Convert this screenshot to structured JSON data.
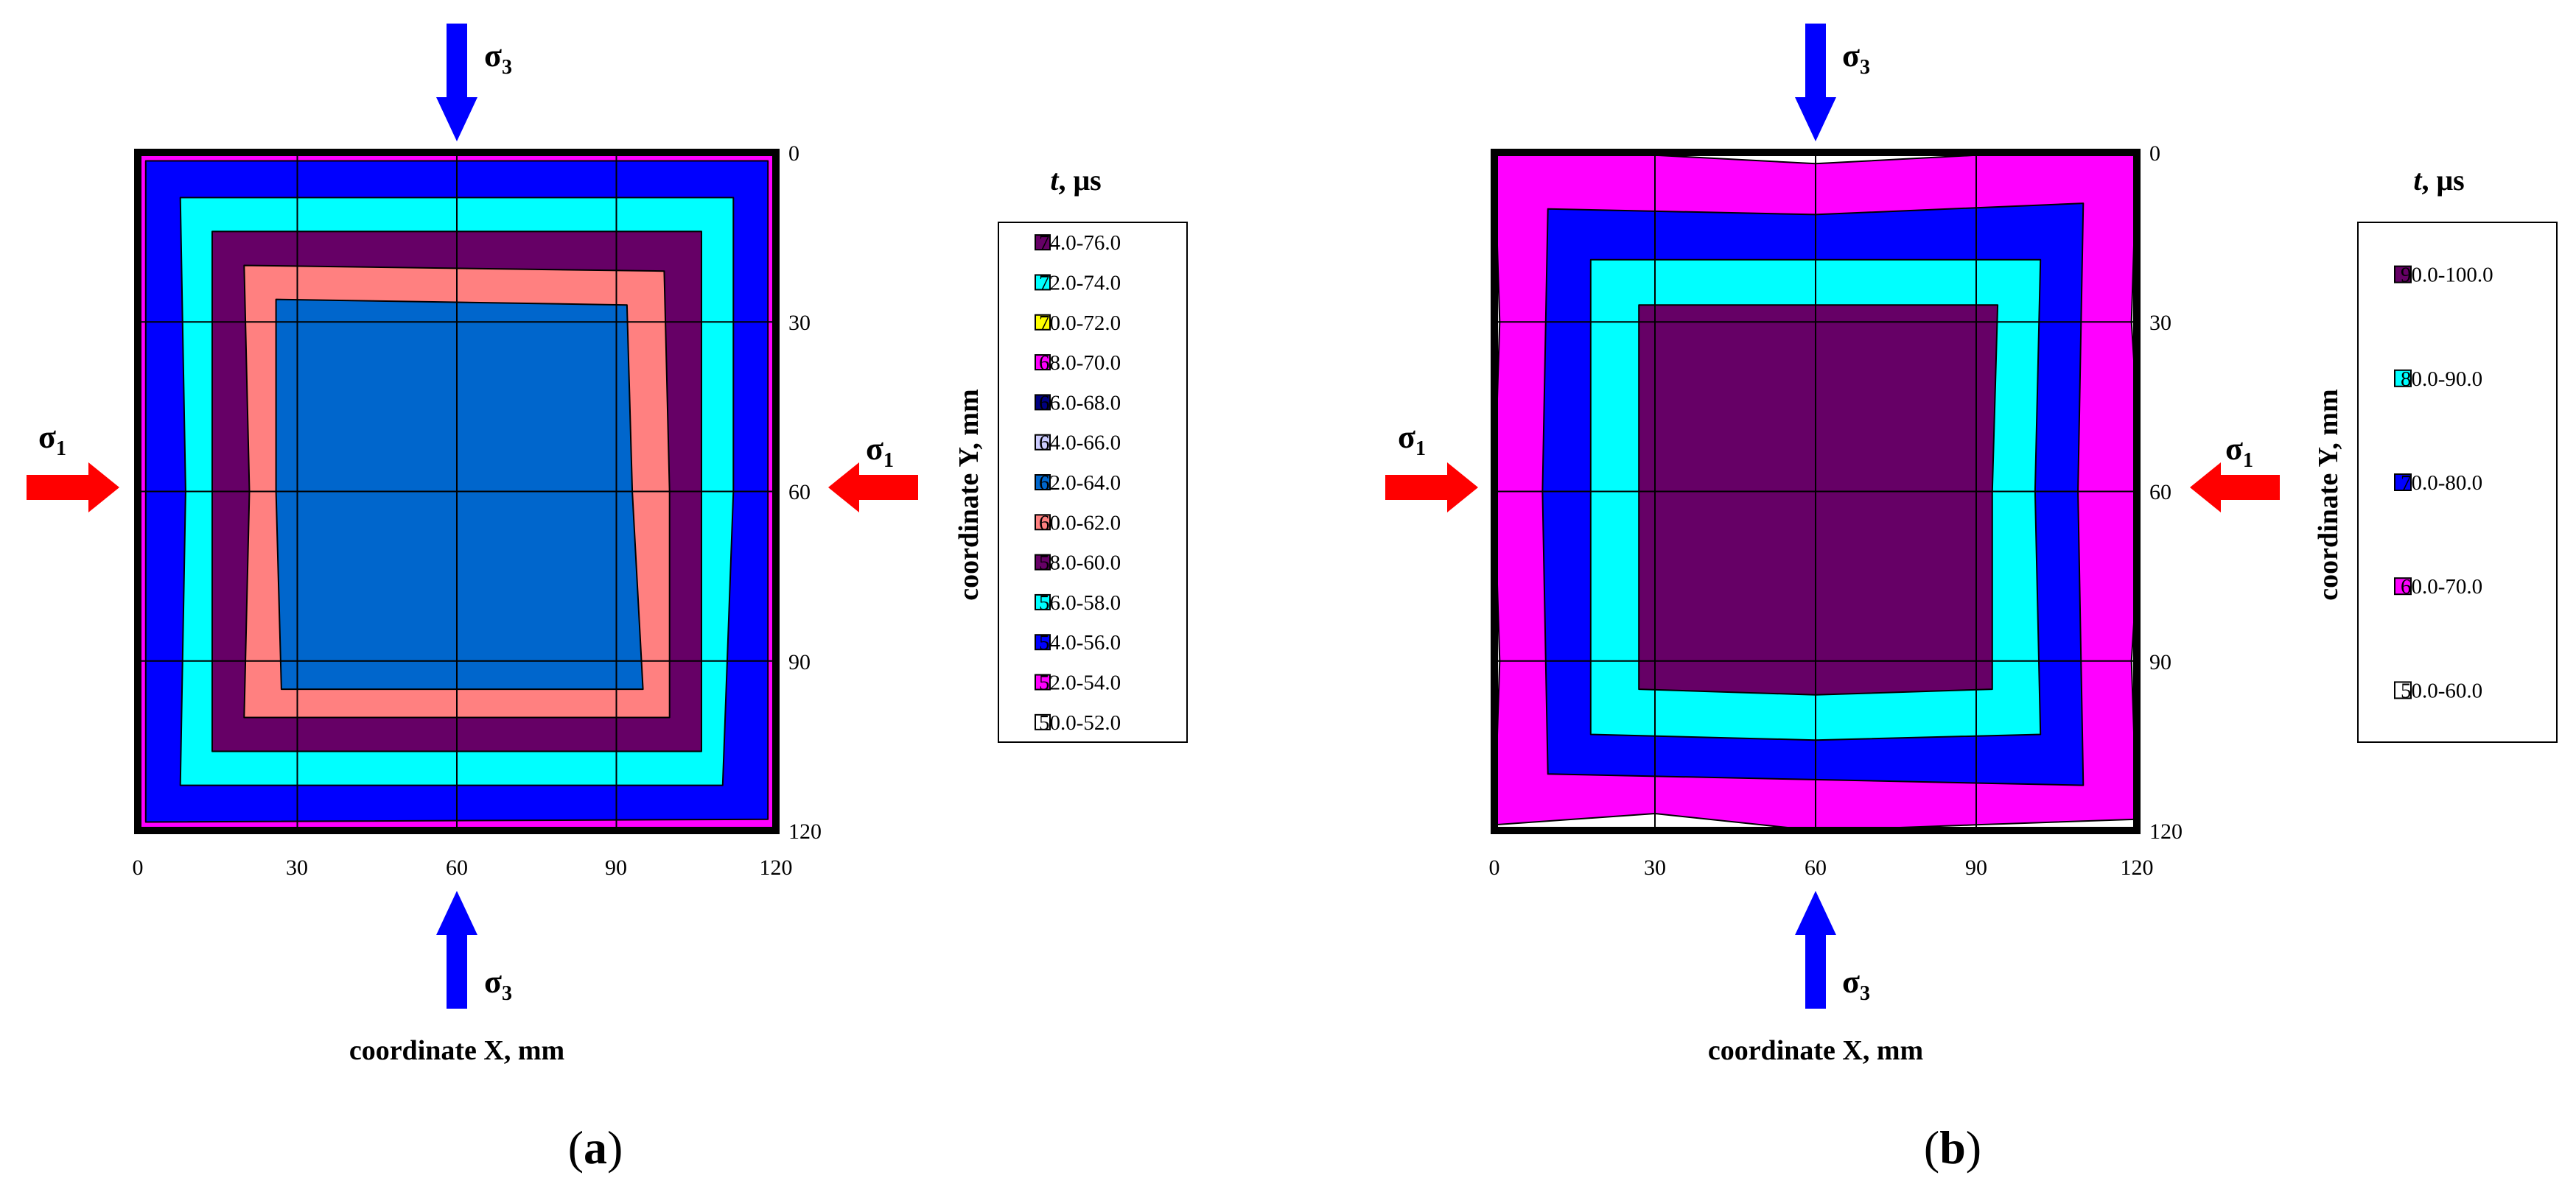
{
  "figure": {
    "panels": [
      {
        "caption_open": "(",
        "caption_letter": "a",
        "caption_close": ")",
        "legend_title_t": "t",
        "legend_title_unit": ", μs",
        "sigma_symbol": "σ",
        "sigma1_sub": "1",
        "sigma3_sub": "3",
        "colors": {
          "arrow_sigma1": "#ff0000",
          "arrow_sigma3": "#0000ff"
        }
      },
      {
        "caption_open": "(",
        "caption_letter": "b",
        "caption_close": ")",
        "legend_title_t": "t",
        "legend_title_unit": ", μs",
        "sigma_symbol": "σ",
        "sigma1_sub": "1",
        "sigma3_sub": "3",
        "colors": {
          "arrow_sigma1": "#ff0000",
          "arrow_sigma3": "#0000ff"
        }
      }
    ]
  },
  "chart_data": [
    {
      "type": "heatmap",
      "subtype": "filled-contour",
      "xlabel": "coordinate X, mm",
      "ylabel": "coordinate Y, mm",
      "xlim": [
        0,
        120
      ],
      "ylim": [
        0,
        120
      ],
      "y_axis_inverted": true,
      "y_axis_side": "right",
      "x_ticks": [
        "0",
        "30",
        "60",
        "90",
        "120"
      ],
      "y_ticks": [
        "0",
        "30",
        "60",
        "90",
        "120"
      ],
      "grid": true,
      "legend_title": "t, μs",
      "legend_position": "right",
      "legend": [
        {
          "label": "74.0-76.0",
          "color": "#660066"
        },
        {
          "label": "72.0-74.0",
          "color": "#00ffff"
        },
        {
          "label": "70.0-72.0",
          "color": "#ffff00"
        },
        {
          "label": "68.0-70.0",
          "color": "#ff00ff"
        },
        {
          "label": "66.0-68.0",
          "color": "#000080"
        },
        {
          "label": "64.0-66.0",
          "color": "#ccccff"
        },
        {
          "label": "62.0-64.0",
          "color": "#0066cc"
        },
        {
          "label": "60.0-62.0",
          "color": "#ff8080"
        },
        {
          "label": "58.0-60.0",
          "color": "#660066"
        },
        {
          "label": "56.0-58.0",
          "color": "#00ffff"
        },
        {
          "label": "54.0-56.0",
          "color": "#0000ff"
        },
        {
          "label": "52.0-54.0",
          "color": "#ff00ff"
        },
        {
          "label": "50.0-52.0",
          "color": "#ffffff"
        }
      ],
      "regions": [
        {
          "range": "52.0-54.0",
          "color": "#ff00ff",
          "polygon": [
            [
              0,
              0
            ],
            [
              120,
              0
            ],
            [
              120,
              120
            ],
            [
              0,
              120
            ]
          ]
        },
        {
          "range": "54.0-56.0",
          "color": "#0000ff",
          "polygon": [
            [
              1.5,
              1.5
            ],
            [
              118.5,
              1.5
            ],
            [
              118.5,
              118
            ],
            [
              1.5,
              118.5
            ]
          ]
        },
        {
          "range": "56.0-58.0",
          "color": "#00ffff",
          "polygon": [
            [
              8,
              8
            ],
            [
              112,
              8
            ],
            [
              112,
              60
            ],
            [
              110,
              112
            ],
            [
              8,
              112
            ],
            [
              9,
              60
            ]
          ]
        },
        {
          "range": "58.0-60.0",
          "color": "#660066",
          "polygon": [
            [
              14,
              14
            ],
            [
              106,
              14
            ],
            [
              106,
              60
            ],
            [
              106,
              106
            ],
            [
              14,
              106
            ],
            [
              14,
              60
            ]
          ]
        },
        {
          "range": "60.0-62.0",
          "color": "#ff8080",
          "polygon": [
            [
              20,
              20
            ],
            [
              99,
              21
            ],
            [
              100,
              60
            ],
            [
              100,
              100
            ],
            [
              20,
              100
            ],
            [
              21,
              60
            ]
          ]
        },
        {
          "range": "62.0-64.0",
          "color": "#0066cc",
          "polygon": [
            [
              26,
              26
            ],
            [
              92,
              27
            ],
            [
              93,
              60
            ],
            [
              95,
              95
            ],
            [
              27,
              95
            ],
            [
              26,
              60
            ]
          ]
        }
      ]
    },
    {
      "type": "heatmap",
      "subtype": "filled-contour",
      "xlabel": "coordinate X, mm",
      "ylabel": "coordinate Y, mm",
      "xlim": [
        0,
        120
      ],
      "ylim": [
        0,
        120
      ],
      "y_axis_inverted": true,
      "y_axis_side": "right",
      "x_ticks": [
        "0",
        "30",
        "60",
        "90",
        "120"
      ],
      "y_ticks": [
        "0",
        "30",
        "60",
        "90",
        "120"
      ],
      "grid": true,
      "legend_title": "t, μs",
      "legend_position": "right",
      "legend": [
        {
          "label": "90.0-100.0",
          "color": "#660066"
        },
        {
          "label": "80.0-90.0",
          "color": "#00ffff"
        },
        {
          "label": "70.0-80.0",
          "color": "#0000ff"
        },
        {
          "label": "60.0-70.0",
          "color": "#ff00ff"
        },
        {
          "label": "50.0-60.0",
          "color": "#ffffff"
        }
      ],
      "regions": [
        {
          "range": "50.0-60.0",
          "color": "#ffffff",
          "polygon": [
            [
              0,
              0
            ],
            [
              120,
              0
            ],
            [
              120,
              120
            ],
            [
              0,
              120
            ]
          ]
        },
        {
          "range": "60.0-70.0",
          "color": "#ff00ff",
          "polygon": [
            [
              0,
              0
            ],
            [
              30,
              0.5
            ],
            [
              60,
              2
            ],
            [
              90,
              0.5
            ],
            [
              120,
              0
            ],
            [
              119,
              30
            ],
            [
              121,
              60
            ],
            [
              119,
              90
            ],
            [
              120,
              118
            ],
            [
              90,
              119
            ],
            [
              60,
              120
            ],
            [
              30,
              117
            ],
            [
              0,
              119
            ],
            [
              1,
              90
            ],
            [
              0,
              60
            ],
            [
              1,
              30
            ]
          ]
        },
        {
          "range": "70.0-80.0",
          "color": "#0000ff",
          "polygon": [
            [
              10,
              10
            ],
            [
              60,
              11
            ],
            [
              110,
              9
            ],
            [
              109,
              60
            ],
            [
              110,
              112
            ],
            [
              60,
              111
            ],
            [
              10,
              110
            ],
            [
              9,
              60
            ]
          ]
        },
        {
          "range": "80.0-90.0",
          "color": "#00ffff",
          "polygon": [
            [
              18,
              19
            ],
            [
              60,
              19
            ],
            [
              102,
              19
            ],
            [
              101,
              60
            ],
            [
              102,
              103
            ],
            [
              60,
              104
            ],
            [
              18,
              103
            ],
            [
              18,
              60
            ]
          ]
        },
        {
          "range": "90.0-100.0",
          "color": "#660066",
          "polygon": [
            [
              27,
              27
            ],
            [
              60,
              27
            ],
            [
              94,
              27
            ],
            [
              93,
              60
            ],
            [
              93,
              95
            ],
            [
              60,
              96
            ],
            [
              27,
              95
            ],
            [
              27,
              60
            ]
          ]
        }
      ]
    }
  ]
}
